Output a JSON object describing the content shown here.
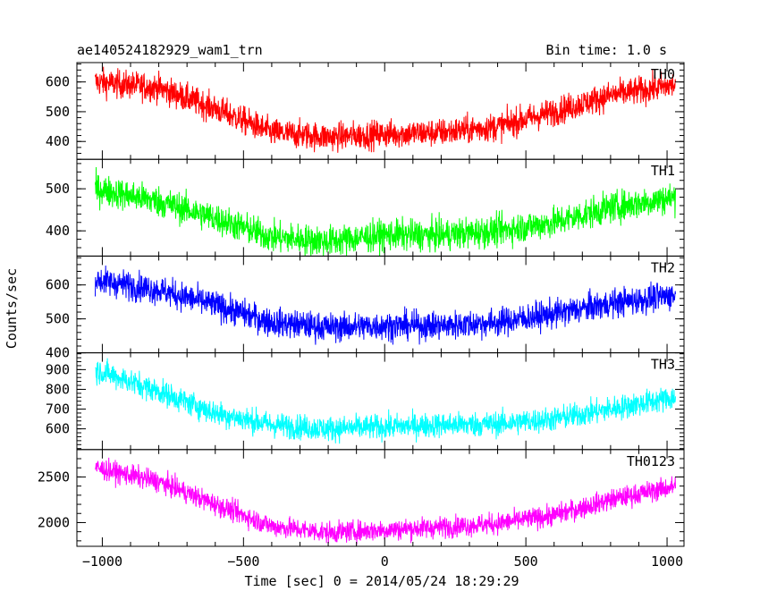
{
  "header": {
    "left": "ae140524182929_wam1_trn",
    "right": "Bin time: 1.0 s"
  },
  "ylabel": "Counts/sec",
  "chart_data": {
    "type": "line",
    "xlabel": "Time [sec] 0 = 2014/05/24 18:29:29",
    "xlim": [
      -1090,
      1060
    ],
    "x_ticks": [
      -1000,
      -500,
      0,
      500,
      1000
    ],
    "x_range": [
      -1025,
      1030
    ],
    "bin_time_s": 1.0,
    "panels": [
      {
        "name": "TH0",
        "color": "#ff0000",
        "ylim": [
          340,
          665
        ],
        "y_ticks": [
          400,
          500,
          600
        ],
        "trend": [
          [
            -1025,
            600
          ],
          [
            -800,
            580
          ],
          [
            -600,
            510
          ],
          [
            -400,
            430
          ],
          [
            -200,
            415
          ],
          [
            0,
            425
          ],
          [
            200,
            430
          ],
          [
            400,
            450
          ],
          [
            600,
            500
          ],
          [
            800,
            555
          ],
          [
            1030,
            590
          ]
        ],
        "noise_amplitude": 45
      },
      {
        "name": "TH1",
        "color": "#00ff00",
        "ylim": [
          340,
          570
        ],
        "y_ticks": [
          400,
          500
        ],
        "trend": [
          [
            -1025,
            500
          ],
          [
            -800,
            470
          ],
          [
            -600,
            430
          ],
          [
            -400,
            385
          ],
          [
            -200,
            375
          ],
          [
            0,
            390
          ],
          [
            200,
            390
          ],
          [
            400,
            400
          ],
          [
            600,
            420
          ],
          [
            800,
            455
          ],
          [
            1030,
            480
          ]
        ],
        "noise_amplitude": 35
      },
      {
        "name": "TH2",
        "color": "#0000ff",
        "ylim": [
          400,
          685
        ],
        "y_ticks": [
          400,
          500,
          600
        ],
        "trend": [
          [
            -1025,
            615
          ],
          [
            -800,
            585
          ],
          [
            -600,
            540
          ],
          [
            -400,
            490
          ],
          [
            -200,
            475
          ],
          [
            0,
            480
          ],
          [
            200,
            480
          ],
          [
            400,
            490
          ],
          [
            600,
            515
          ],
          [
            800,
            545
          ],
          [
            1030,
            570
          ]
        ],
        "noise_amplitude": 40
      },
      {
        "name": "TH3",
        "color": "#00ffff",
        "ylim": [
          495,
          985
        ],
        "y_ticks": [
          600,
          700,
          800,
          900
        ],
        "trend": [
          [
            -1025,
            900
          ],
          [
            -800,
            790
          ],
          [
            -600,
            680
          ],
          [
            -400,
            620
          ],
          [
            -200,
            600
          ],
          [
            0,
            610
          ],
          [
            200,
            620
          ],
          [
            400,
            625
          ],
          [
            600,
            650
          ],
          [
            800,
            700
          ],
          [
            1030,
            760
          ]
        ],
        "noise_amplitude": 60
      },
      {
        "name": "TH0123",
        "color": "#ff00ff",
        "ylim": [
          1740,
          2800
        ],
        "y_ticks": [
          2000,
          2500
        ],
        "trend": [
          [
            -1025,
            2600
          ],
          [
            -800,
            2450
          ],
          [
            -600,
            2200
          ],
          [
            -400,
            1960
          ],
          [
            -200,
            1890
          ],
          [
            0,
            1920
          ],
          [
            200,
            1950
          ],
          [
            400,
            1990
          ],
          [
            600,
            2080
          ],
          [
            800,
            2250
          ],
          [
            1030,
            2400
          ]
        ],
        "noise_amplitude": 110
      }
    ]
  }
}
